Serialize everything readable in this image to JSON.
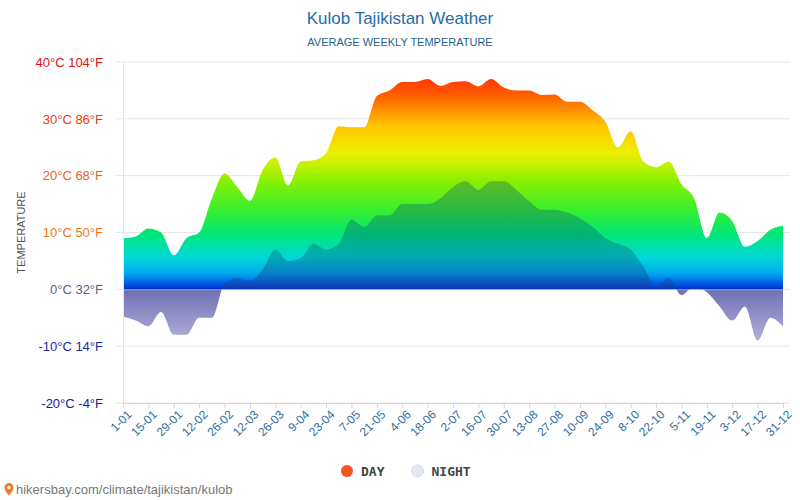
{
  "chart_data": {
    "type": "area",
    "title": "Kulob Tajikistan Weather",
    "subtitle": "AVERAGE WEEKLY TEMPERATURE",
    "ylabel": "TEMPERATURE",
    "annotations": [
      "hikersbay.com/climate/tajikistan/kulob"
    ],
    "categories": [
      "1-01",
      null,
      "15-01",
      null,
      "29-01",
      null,
      "12-02",
      null,
      "26-02",
      null,
      "12-03",
      null,
      "26-03",
      null,
      "9-04",
      null,
      "23-04",
      null,
      "7-05",
      null,
      "21-05",
      null,
      "4-06",
      null,
      "18-06",
      null,
      "2-07",
      null,
      "16-07",
      null,
      "30-07",
      null,
      "13-08",
      null,
      "27-08",
      null,
      "10-09",
      null,
      "24-09",
      null,
      "8-10",
      null,
      "22-10",
      null,
      "5-11",
      null,
      "19-11",
      null,
      "3-12",
      null,
      "17-12",
      null,
      "31-12"
    ],
    "series": [
      {
        "name": "DAY",
        "color": "#f2541b",
        "values": [
          9,
          9.3,
          10.7,
          10,
          6,
          9,
          10,
          16,
          20.4,
          18,
          15.6,
          21,
          23.2,
          18.3,
          22.5,
          22.7,
          24,
          28.7,
          28.5,
          28.5,
          34,
          35,
          36.5,
          36.5,
          37,
          35.8,
          36.5,
          36.6,
          35.7,
          37,
          35.5,
          35,
          35,
          34.2,
          34.3,
          33,
          33,
          31.5,
          29.5,
          25,
          27.8,
          22.5,
          21.5,
          22.5,
          18.5,
          16,
          9,
          13.5,
          12,
          7.5,
          8.5,
          10.5,
          11.2
        ]
      },
      {
        "name": "NIGHT",
        "color": "#e4e8f3",
        "values": [
          -4.8,
          -5.5,
          -6.5,
          -4,
          -8,
          -8,
          -5,
          -5,
          1,
          2,
          1.5,
          3.5,
          7,
          5,
          5.5,
          8,
          7,
          8,
          12.3,
          11,
          13,
          13,
          15,
          15,
          15,
          16,
          18,
          19,
          17.5,
          19,
          19,
          17.5,
          15.5,
          14,
          14,
          13.5,
          12.5,
          11,
          9,
          8,
          7,
          4,
          0.5,
          2,
          -1,
          0.5,
          -0.5,
          -3,
          -5.5,
          -3,
          -9,
          -5,
          -6.5
        ]
      }
    ],
    "ylim": [
      -20,
      40
    ],
    "yticks": [
      {
        "value": -20,
        "label": "-20°C -4°F"
      },
      {
        "value": -10,
        "label": "-10°C 14°F"
      },
      {
        "value": 0,
        "label": "0°C 32°F"
      },
      {
        "value": 10,
        "label": "10°C 50°F"
      },
      {
        "value": 20,
        "label": "20°C 68°F"
      },
      {
        "value": 30,
        "label": "30°C 86°F"
      },
      {
        "value": 40,
        "label": "40°C 104°F"
      }
    ],
    "grid": true,
    "legend": "bottom"
  }
}
